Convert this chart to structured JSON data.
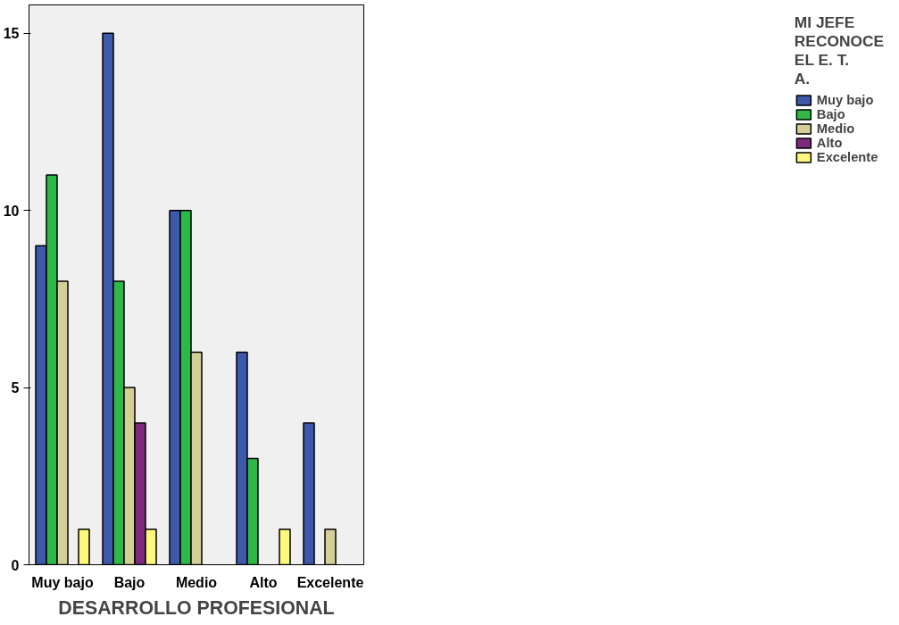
{
  "chart_data": {
    "type": "bar",
    "xlabel": "DESARROLLO PROFESIONAL",
    "legend_title": "MI JEFE RECONOCE EL E. T. A.",
    "categories": [
      "Muy bajo",
      "Bajo",
      "Medio",
      "Alto",
      "Excelente"
    ],
    "series": [
      {
        "name": "Muy bajo",
        "color": "#3e58ac",
        "values": [
          9,
          15,
          10,
          6,
          4
        ]
      },
      {
        "name": "Bajo",
        "color": "#2eb848",
        "values": [
          11,
          8,
          10,
          3,
          null
        ]
      },
      {
        "name": "Medio",
        "color": "#d4cf97",
        "values": [
          8,
          5,
          6,
          null,
          1
        ]
      },
      {
        "name": "Alto",
        "color": "#7c2b7c",
        "values": [
          null,
          4,
          null,
          null,
          null
        ]
      },
      {
        "name": "Excelente",
        "color": "#fbf87c",
        "values": [
          1,
          1,
          null,
          1,
          null
        ]
      }
    ],
    "ylim": [
      0,
      15.8
    ],
    "yticks": [
      0,
      5,
      10,
      15
    ],
    "grid": false,
    "legend": "top right"
  }
}
